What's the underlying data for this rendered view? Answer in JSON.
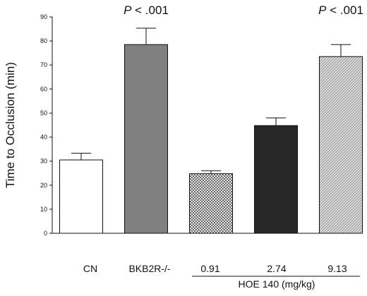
{
  "chart_data": {
    "type": "bar",
    "title": "",
    "ylabel": "Time to Occlusion (min)",
    "ylim": [
      0,
      90
    ],
    "yticks": [
      0,
      10,
      20,
      30,
      40,
      50,
      60,
      70,
      80,
      90
    ],
    "categories": [
      "CN",
      "BKB2R-/-",
      "0.91",
      "2.74",
      "9.13"
    ],
    "values": [
      30.5,
      78.5,
      24.8,
      44.8,
      73.5
    ],
    "errors": [
      2.8,
      6.8,
      1.2,
      3.2,
      5.0
    ],
    "group_label": "HOE 140 (mg/kg)",
    "annotations": [
      {
        "category": "BKB2R-/-",
        "p_italic": "P",
        "rest": " < .001"
      },
      {
        "category": "9.13",
        "p_italic": "P",
        "rest": " < .001"
      }
    ],
    "colors": {
      "cn": "#ffffff",
      "bkb2r": "#808080",
      "hoe_091": "crosshatch-light",
      "hoe_274": "#1e1e1e",
      "hoe_913": "diagonal-hatch-light"
    }
  }
}
